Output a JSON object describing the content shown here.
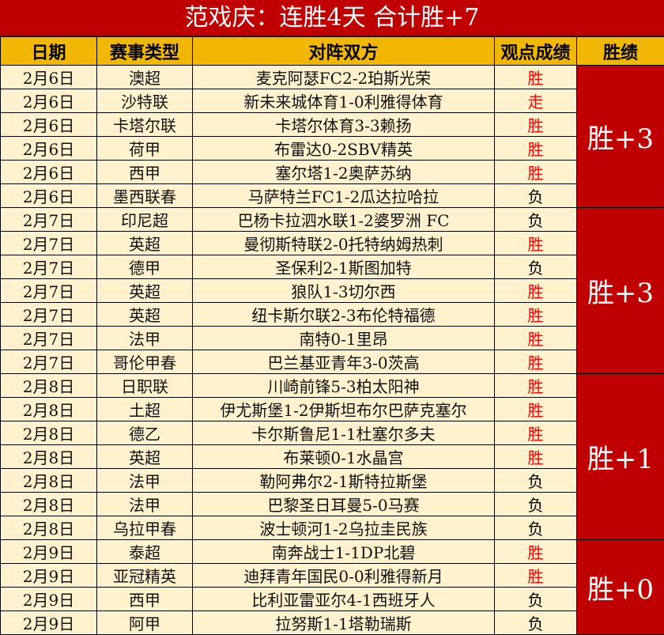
{
  "title": "范戏庆：连胜4天 合计胜+7",
  "headers": [
    "日期",
    "赛事类型",
    "对阵双方",
    "观点成绩",
    "胜绩"
  ],
  "colors": {
    "title_bg": "#c00000",
    "header_bg": "#f2b705",
    "cell_bg": "#fff2cc",
    "win_text": "#ff0000",
    "summary_bg": "#c00000"
  },
  "groups": [
    {
      "summary": "胜+3",
      "rows": [
        {
          "date": "2月6日",
          "league": "澳超",
          "match": "麦克阿瑟FC2-2珀斯光荣",
          "result": "胜"
        },
        {
          "date": "2月6日",
          "league": "沙特联",
          "match": "新未来城体育1-0利雅得体育",
          "result": "走"
        },
        {
          "date": "2月6日",
          "league": "卡塔尔联",
          "match": "卡塔尔体育3-3赖扬",
          "result": "胜"
        },
        {
          "date": "2月6日",
          "league": "荷甲",
          "match": "布雷达0-2SBV精英",
          "result": "胜"
        },
        {
          "date": "2月6日",
          "league": "西甲",
          "match": "塞尔塔1-2奥萨苏纳",
          "result": "胜"
        },
        {
          "date": "2月6日",
          "league": "墨西联春",
          "match": "马萨特兰FC1-2瓜达拉哈拉",
          "result": "负"
        }
      ]
    },
    {
      "summary": "胜+3",
      "rows": [
        {
          "date": "2月7日",
          "league": "印尼超",
          "match": "巴杨卡拉泗水联1-2婆罗洲 FC",
          "result": "负"
        },
        {
          "date": "2月7日",
          "league": "英超",
          "match": "曼彻斯特联2-0托特纳姆热刺",
          "result": "胜"
        },
        {
          "date": "2月7日",
          "league": "德甲",
          "match": "圣保利2-1斯图加特",
          "result": "负"
        },
        {
          "date": "2月7日",
          "league": "英超",
          "match": "狼队1-3切尔西",
          "result": "胜"
        },
        {
          "date": "2月7日",
          "league": "英超",
          "match": "纽卡斯尔联2-3布伦特福德",
          "result": "胜"
        },
        {
          "date": "2月7日",
          "league": "法甲",
          "match": "南特0-1里昂",
          "result": "胜"
        },
        {
          "date": "2月7日",
          "league": "哥伦甲春",
          "match": "巴兰基亚青年3-0茨高",
          "result": "胜"
        }
      ]
    },
    {
      "summary": "胜+1",
      "rows": [
        {
          "date": "2月8日",
          "league": "日职联",
          "match": "川崎前锋5-3柏太阳神",
          "result": "胜"
        },
        {
          "date": "2月8日",
          "league": "土超",
          "match": "伊尤斯堡1-2伊斯坦布尔巴萨克塞尔",
          "result": "胜"
        },
        {
          "date": "2月8日",
          "league": "德乙",
          "match": "卡尔斯鲁尼1-1杜塞尔多夫",
          "result": "胜"
        },
        {
          "date": "2月8日",
          "league": "英超",
          "match": "布莱顿0-1水晶宫",
          "result": "胜"
        },
        {
          "date": "2月8日",
          "league": "法甲",
          "match": "勒阿弗尔2-1斯特拉斯堡",
          "result": "负"
        },
        {
          "date": "2月8日",
          "league": "法甲",
          "match": "巴黎圣日耳曼5-0马赛",
          "result": "负"
        },
        {
          "date": "2月8日",
          "league": "乌拉甲春",
          "match": "波士顿河1-2乌拉圭民族",
          "result": "负"
        }
      ]
    },
    {
      "summary": "胜+0",
      "rows": [
        {
          "date": "2月9日",
          "league": "泰超",
          "match": "南奔战士1-1DP北碧",
          "result": "胜"
        },
        {
          "date": "2月9日",
          "league": "亚冠精英",
          "match": "迪拜青年国民0-0利雅得新月",
          "result": "胜"
        },
        {
          "date": "2月9日",
          "league": "西甲",
          "match": "比利亚雷亚尔4-1西班牙人",
          "result": "负"
        },
        {
          "date": "2月9日",
          "league": "阿甲",
          "match": "拉努斯1-1塔勒瑞斯",
          "result": "负"
        }
      ]
    }
  ]
}
